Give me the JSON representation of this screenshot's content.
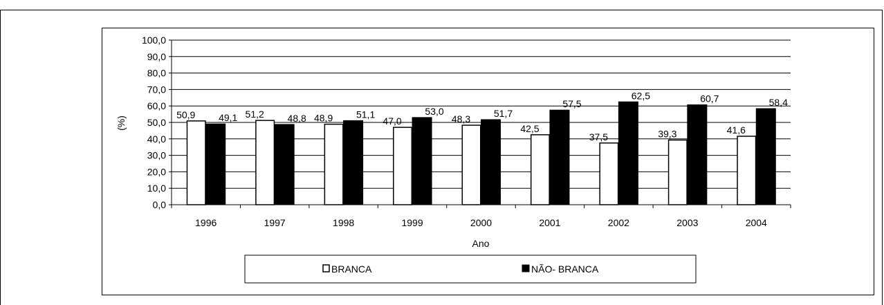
{
  "chart_data": {
    "type": "bar",
    "title": "",
    "xlabel": "Ano",
    "ylabel": "(%)",
    "ylim": [
      0,
      100
    ],
    "yticks": [
      "0,0",
      "10,0",
      "20,0",
      "30,0",
      "40,0",
      "50,0",
      "60,0",
      "70,0",
      "80,0",
      "90,0",
      "100,0"
    ],
    "grid": true,
    "legend_position": "bottom",
    "categories": [
      "1996",
      "1997",
      "1998",
      "1999",
      "2000",
      "2001",
      "2002",
      "2003",
      "2004"
    ],
    "series": [
      {
        "name": "BRANCA",
        "color": "#ffffff",
        "values": [
          50.9,
          51.2,
          48.9,
          47.0,
          48.3,
          42.5,
          37.5,
          39.3,
          41.6
        ],
        "labels": [
          "50,9",
          "51,2",
          "48,9",
          "47,0",
          "48,3",
          "42,5",
          "37,5",
          "39,3",
          "41,6"
        ]
      },
      {
        "name": "NÃO- BRANCA",
        "color": "#000000",
        "values": [
          49.1,
          48.8,
          51.1,
          53.0,
          51.7,
          57.5,
          62.5,
          60.7,
          58.4
        ],
        "labels": [
          "49,1",
          "48,8",
          "51,1",
          "53,0",
          "51,7",
          "57,5",
          "62,5",
          "60,7",
          "58,4"
        ]
      }
    ]
  }
}
